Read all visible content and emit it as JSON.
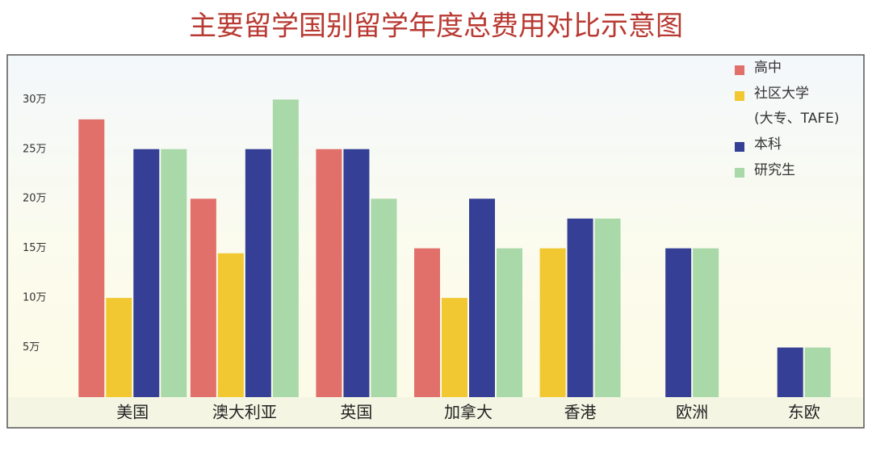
{
  "chart_data": {
    "type": "bar",
    "title": "主要留学国别留学年度总费用对比示意图",
    "categories": [
      "美国",
      "澳大利亚",
      "英国",
      "加拿大",
      "香港",
      "欧洲",
      "东欧"
    ],
    "series": [
      {
        "name": "高中",
        "color": "#e2706a",
        "values": [
          28,
          20,
          25,
          15,
          null,
          null,
          null
        ]
      },
      {
        "name": "社区大学\n(大专、TAFE)",
        "color": "#f1c832",
        "values": [
          10,
          14.5,
          null,
          10,
          15,
          null,
          null
        ]
      },
      {
        "name": "本科",
        "color": "#343f95",
        "values": [
          25,
          25,
          25,
          20,
          18,
          15,
          5
        ]
      },
      {
        "name": "研究生",
        "color": "#a9d8a9",
        "values": [
          25,
          30,
          20,
          15,
          18,
          15,
          5
        ]
      }
    ],
    "ylim": [
      0,
      34.5
    ],
    "yticks": [
      {
        "value": 5,
        "label": "5万"
      },
      {
        "value": 10,
        "label": "10万"
      },
      {
        "value": 15,
        "label": "15万"
      },
      {
        "value": 20,
        "label": "20万"
      },
      {
        "value": 25,
        "label": "25万"
      },
      {
        "value": 30,
        "label": "30万"
      }
    ]
  }
}
